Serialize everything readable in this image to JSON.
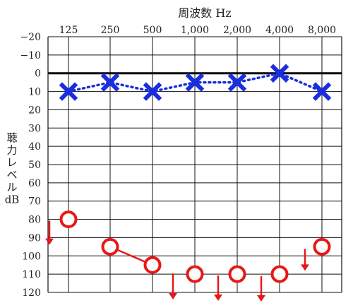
{
  "chart_data": {
    "type": "line",
    "title": "周波数 Hz",
    "ylabel_chars": [
      "聴",
      "力",
      "レ",
      "ベ",
      "ル",
      "dB"
    ],
    "categories": [
      "125",
      "250",
      "500",
      "1,000",
      "2,000",
      "4,000",
      "8,000"
    ],
    "x_tick_labels": [
      "125",
      "250",
      "500",
      "1,000",
      "2,000",
      "4,000",
      "8,000"
    ],
    "y_tick_labels": [
      "−20",
      "−10",
      "0",
      "10",
      "20",
      "30",
      "40",
      "50",
      "60",
      "70",
      "80",
      "90",
      "100",
      "110",
      "120"
    ],
    "y_ticks": [
      -20,
      -10,
      0,
      10,
      20,
      30,
      40,
      50,
      60,
      70,
      80,
      90,
      100,
      110,
      120
    ],
    "ylim": [
      -20,
      120
    ],
    "y_inverted": true,
    "grid": true,
    "reference_line_y": 0,
    "series": [
      {
        "marker": "x",
        "color": "#1a2ee0",
        "linestyle": "dotted",
        "values": [
          10,
          5,
          10,
          5,
          5,
          0,
          10
        ]
      },
      {
        "marker": "o",
        "color": "#e81818",
        "values": [
          80,
          95,
          105,
          110,
          110,
          110,
          95
        ],
        "connect_pairs": [
          [
            1,
            2
          ]
        ],
        "no_response_arrows_x": [
          70,
          245,
          309,
          370,
          432
        ]
      }
    ]
  }
}
